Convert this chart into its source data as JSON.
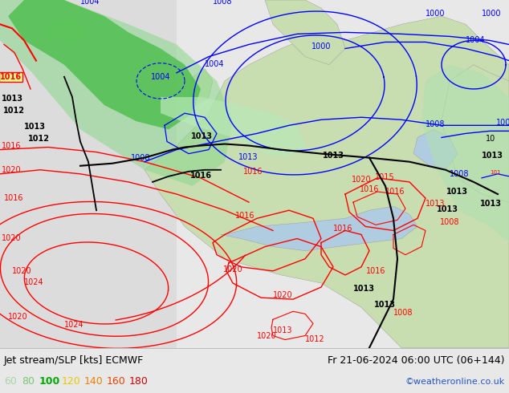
{
  "title_left": "Jet stream/SLP [kts] ECMWF",
  "title_right": "Fr 21-06-2024 06:00 UTC (06+144)",
  "credit": "©weatheronline.co.uk",
  "legend_values": [
    "60",
    "80",
    "100",
    "120",
    "140",
    "160",
    "180"
  ],
  "legend_colors": [
    "#a8d8a8",
    "#78c878",
    "#00aa00",
    "#e8c800",
    "#e88000",
    "#e84000",
    "#cc0000"
  ],
  "bg_color": "#dcdcdc",
  "land_color": "#c8ddb0",
  "ocean_color": "#c8dcec",
  "bottom_bar_color": "#e8e8e8",
  "figsize": [
    6.34,
    4.9
  ],
  "dpi": 100,
  "font_size_title": 9,
  "font_size_legend": 9,
  "font_size_credit": 8,
  "font_size_label": 7
}
